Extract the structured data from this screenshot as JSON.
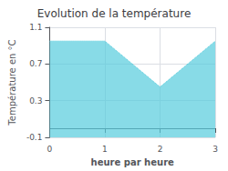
{
  "chart_data": {
    "type": "area",
    "title": "Evolution de la température",
    "xlabel": "heure par heure",
    "ylabel": "Température en °C",
    "x": [
      0,
      1,
      2,
      3
    ],
    "values": [
      0.95,
      0.95,
      0.45,
      0.95
    ],
    "color": "#55ccdd",
    "line_style": "dotted",
    "xlim": [
      0,
      3
    ],
    "ylim": [
      -0.1,
      1.1
    ],
    "xticks": [
      0,
      1,
      2,
      3
    ],
    "yticks": [
      -0.1,
      0.3,
      0.7,
      1.1
    ],
    "grid": true
  }
}
